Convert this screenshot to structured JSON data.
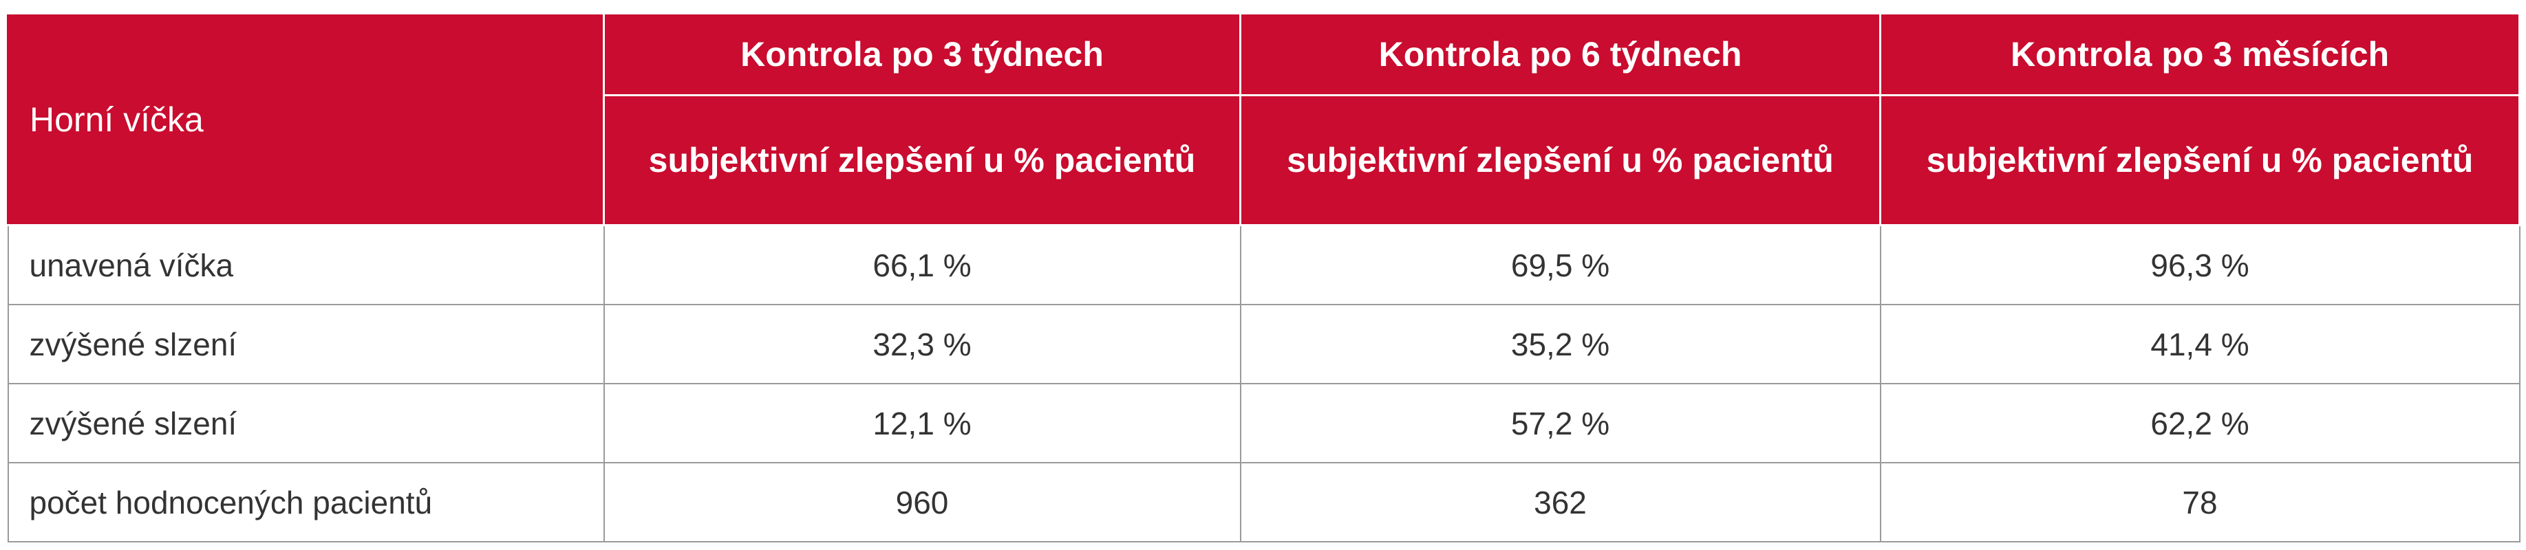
{
  "table": {
    "header": {
      "title": "Horní víčka",
      "columns": [
        "Kontrola po 3 týdnech",
        "Kontrola po 6 týdnech",
        "Kontrola po 3 měsících"
      ],
      "subheaders": [
        "subjektivní zlepšení u % pacientů",
        "subjektivní zlepšení u % pacientů",
        "subjektivní zlepšení u % pacientů"
      ]
    },
    "rows": [
      [
        "unavená víčka",
        "66,1 %",
        "69,5 %",
        "96,3 %"
      ],
      [
        "zvýšené slzení",
        "32,3 %",
        "35,2 %",
        "41,4 %"
      ],
      [
        "zvýšené slzení",
        "12,1 %",
        "57,2 %",
        "62,2 %"
      ],
      [
        "počet hodnocených pacientů",
        "960",
        "362",
        "78"
      ]
    ]
  }
}
